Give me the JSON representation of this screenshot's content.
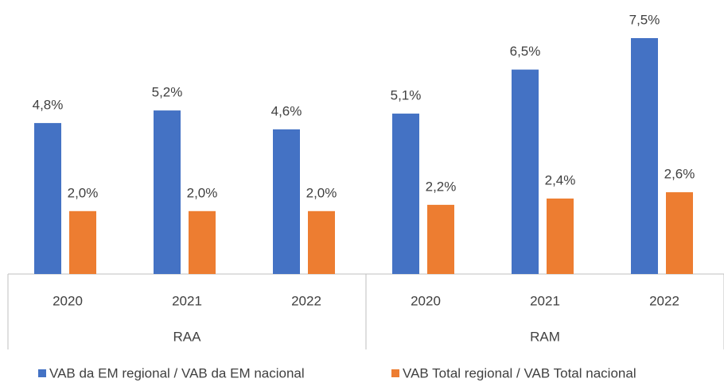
{
  "chart_data": {
    "type": "bar",
    "groups": [
      {
        "name": "RAA",
        "categories": [
          "2020",
          "2021",
          "2022"
        ]
      },
      {
        "name": "RAM",
        "categories": [
          "2020",
          "2021",
          "2022"
        ]
      }
    ],
    "series": [
      {
        "name": "VAB da EM regional / VAB da EM nacional",
        "color": "#4472c4",
        "values": [
          4.8,
          5.2,
          4.6,
          5.1,
          6.5,
          7.5
        ],
        "value_labels": [
          "4,8%",
          "5,2%",
          "4,6%",
          "5,1%",
          "6,5%",
          "7,5%"
        ]
      },
      {
        "name": "VAB Total regional / VAB Total nacional",
        "color": "#ed7d31",
        "values": [
          2.0,
          2.0,
          2.0,
          2.2,
          2.4,
          2.6
        ],
        "value_labels": [
          "2,0%",
          "2,0%",
          "2,0%",
          "2,2%",
          "2,4%",
          "2,6%"
        ]
      }
    ],
    "legend": "bottom"
  }
}
